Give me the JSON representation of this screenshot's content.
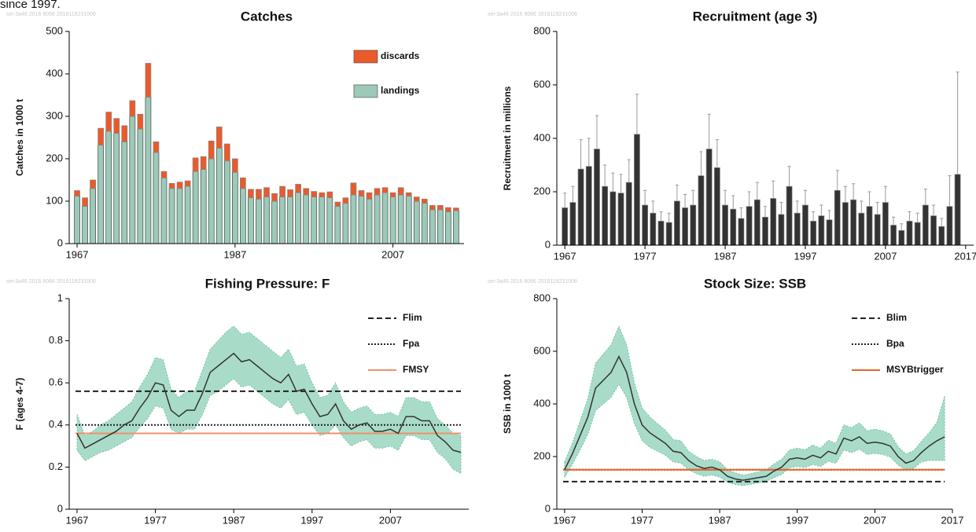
{
  "page_text": "since 1997.",
  "chart_data": [
    {
      "type": "bar",
      "title": "Catches",
      "y_label": "Catches in 1000 t",
      "watermark": "sei-3a46  2016  8066  2016119231006",
      "x": [
        1967,
        1968,
        1969,
        1970,
        1971,
        1972,
        1973,
        1974,
        1975,
        1976,
        1977,
        1978,
        1979,
        1980,
        1981,
        1982,
        1983,
        1984,
        1985,
        1986,
        1987,
        1988,
        1989,
        1990,
        1991,
        1992,
        1993,
        1994,
        1995,
        1996,
        1997,
        1998,
        1999,
        2000,
        2001,
        2002,
        2003,
        2004,
        2005,
        2006,
        2007,
        2008,
        2009,
        2010,
        2011,
        2012,
        2013,
        2014,
        2015
      ],
      "series": [
        {
          "name": "landings",
          "color": "#9dc9b8",
          "values": [
            112,
            88,
            130,
            232,
            265,
            260,
            240,
            300,
            270,
            345,
            215,
            155,
            130,
            130,
            135,
            170,
            175,
            200,
            225,
            195,
            168,
            130,
            108,
            105,
            110,
            100,
            110,
            110,
            120,
            115,
            110,
            110,
            108,
            88,
            95,
            115,
            112,
            105,
            115,
            120,
            110,
            115,
            112,
            100,
            95,
            80,
            80,
            75,
            78
          ]
        },
        {
          "name": "discards",
          "color": "#ea5a2a",
          "values": [
            13,
            20,
            20,
            40,
            45,
            35,
            38,
            37,
            35,
            80,
            25,
            15,
            12,
            15,
            13,
            32,
            30,
            42,
            50,
            40,
            32,
            25,
            20,
            23,
            22,
            18,
            25,
            17,
            20,
            15,
            13,
            10,
            14,
            10,
            13,
            28,
            13,
            15,
            15,
            12,
            10,
            17,
            8,
            10,
            10,
            10,
            10,
            10,
            6
          ]
        }
      ],
      "xlim": [
        1966,
        2016
      ],
      "xticks": [
        1967,
        1987,
        2007
      ],
      "ylim": [
        0,
        500
      ],
      "yticks": [
        0,
        100,
        200,
        300,
        400,
        500
      ],
      "legend": "upper right"
    },
    {
      "type": "bar",
      "title": "Recruitment (age 3)",
      "y_label": "Recruitment in millions",
      "watermark": "sei-3a46  2016  8066  2016119231006",
      "x": [
        1967,
        1968,
        1969,
        1970,
        1971,
        1972,
        1973,
        1974,
        1975,
        1976,
        1977,
        1978,
        1979,
        1980,
        1981,
        1982,
        1983,
        1984,
        1985,
        1986,
        1987,
        1988,
        1989,
        1990,
        1991,
        1992,
        1993,
        1994,
        1995,
        1996,
        1997,
        1998,
        1999,
        2000,
        2001,
        2002,
        2003,
        2004,
        2005,
        2006,
        2007,
        2008,
        2009,
        2010,
        2011,
        2012,
        2013,
        2014,
        2015,
        2016
      ],
      "series": [
        {
          "color": "#333333",
          "values": [
            140,
            160,
            285,
            295,
            360,
            220,
            200,
            195,
            235,
            415,
            150,
            120,
            90,
            85,
            165,
            140,
            150,
            260,
            360,
            290,
            150,
            135,
            100,
            145,
            170,
            105,
            175,
            115,
            220,
            120,
            150,
            90,
            110,
            95,
            205,
            160,
            170,
            120,
            145,
            115,
            160,
            75,
            55,
            90,
            85,
            150,
            110,
            70,
            145,
            265
          ],
          "upper": [
            195,
            220,
            395,
            400,
            485,
            300,
            270,
            265,
            320,
            565,
            205,
            165,
            125,
            120,
            225,
            190,
            205,
            350,
            490,
            395,
            205,
            185,
            140,
            200,
            235,
            145,
            240,
            160,
            295,
            165,
            205,
            125,
            150,
            130,
            280,
            220,
            230,
            165,
            200,
            160,
            220,
            105,
            80,
            125,
            120,
            210,
            150,
            100,
            260,
            648
          ]
        }
      ],
      "xlim": [
        1966,
        2018
      ],
      "xticks": [
        1967,
        1977,
        1987,
        1997,
        2007,
        2017
      ],
      "ylim": [
        0,
        800
      ],
      "yticks": [
        0,
        200,
        400,
        600,
        800
      ]
    },
    {
      "type": "line",
      "title": "Fishing Pressure: F",
      "y_label": "F (ages 4-7)",
      "watermark": "sei-3a46  2016  8066  2016119231006",
      "x": [
        1967,
        1968,
        1969,
        1970,
        1971,
        1972,
        1973,
        1974,
        1975,
        1976,
        1977,
        1978,
        1979,
        1980,
        1981,
        1982,
        1983,
        1984,
        1985,
        1986,
        1987,
        1988,
        1989,
        1990,
        1991,
        1992,
        1993,
        1994,
        1995,
        1996,
        1997,
        1998,
        1999,
        2000,
        2001,
        2002,
        2003,
        2004,
        2005,
        2006,
        2007,
        2008,
        2009,
        2010,
        2011,
        2012,
        2013,
        2014,
        2015,
        2016
      ],
      "values": [
        0.36,
        0.29,
        0.31,
        0.33,
        0.35,
        0.37,
        0.4,
        0.42,
        0.48,
        0.53,
        0.6,
        0.59,
        0.47,
        0.44,
        0.47,
        0.47,
        0.55,
        0.65,
        0.68,
        0.71,
        0.74,
        0.7,
        0.71,
        0.68,
        0.65,
        0.62,
        0.6,
        0.64,
        0.56,
        0.57,
        0.5,
        0.44,
        0.45,
        0.5,
        0.42,
        0.38,
        0.4,
        0.41,
        0.37,
        0.37,
        0.38,
        0.36,
        0.44,
        0.44,
        0.42,
        0.42,
        0.35,
        0.32,
        0.28,
        0.27
      ],
      "color": "#333333",
      "band": {
        "color": "#a8dcc8",
        "high": [
          0.45,
          0.35,
          0.37,
          0.4,
          0.42,
          0.45,
          0.48,
          0.51,
          0.58,
          0.64,
          0.72,
          0.71,
          0.57,
          0.53,
          0.56,
          0.56,
          0.66,
          0.76,
          0.8,
          0.84,
          0.87,
          0.83,
          0.84,
          0.81,
          0.78,
          0.75,
          0.72,
          0.76,
          0.68,
          0.69,
          0.6,
          0.53,
          0.54,
          0.6,
          0.51,
          0.46,
          0.48,
          0.49,
          0.45,
          0.45,
          0.46,
          0.44,
          0.53,
          0.53,
          0.51,
          0.51,
          0.43,
          0.4,
          0.36,
          0.35
        ],
        "low": [
          0.28,
          0.23,
          0.25,
          0.27,
          0.28,
          0.3,
          0.32,
          0.34,
          0.39,
          0.43,
          0.49,
          0.48,
          0.38,
          0.36,
          0.38,
          0.38,
          0.45,
          0.54,
          0.56,
          0.59,
          0.62,
          0.58,
          0.59,
          0.56,
          0.53,
          0.5,
          0.48,
          0.52,
          0.45,
          0.46,
          0.4,
          0.35,
          0.36,
          0.4,
          0.34,
          0.3,
          0.32,
          0.33,
          0.29,
          0.29,
          0.3,
          0.28,
          0.35,
          0.35,
          0.33,
          0.33,
          0.27,
          0.24,
          0.19,
          0.17
        ]
      },
      "reference_lines": [
        {
          "name": "Flim",
          "value": 0.56,
          "color": "#222222",
          "style": "dashed"
        },
        {
          "name": "Fpa",
          "value": 0.4,
          "color": "#222222",
          "style": "dotted"
        },
        {
          "name": "FMSY",
          "value": 0.36,
          "color": "#f0906a",
          "style": "solid"
        }
      ],
      "xlim": [
        1966,
        2017
      ],
      "xticks": [
        1967,
        1977,
        1987,
        1997,
        2007
      ],
      "ylim": [
        0,
        1
      ],
      "yticks": [
        0,
        0.2,
        0.4,
        0.6,
        0.8,
        1
      ],
      "legend": "upper right"
    },
    {
      "type": "line",
      "title": "Stock Size: SSB",
      "y_label": "SSB in 1000 t",
      "watermark": "sei-3a46  2016  8066  2016119231006",
      "x": [
        1967,
        1968,
        1969,
        1970,
        1971,
        1972,
        1973,
        1974,
        1975,
        1976,
        1977,
        1978,
        1979,
        1980,
        1981,
        1982,
        1983,
        1984,
        1985,
        1986,
        1987,
        1988,
        1989,
        1990,
        1991,
        1992,
        1993,
        1994,
        1995,
        1996,
        1997,
        1998,
        1999,
        2000,
        2001,
        2002,
        2003,
        2004,
        2005,
        2006,
        2007,
        2008,
        2009,
        2010,
        2011,
        2012,
        2013,
        2014,
        2015,
        2016
      ],
      "values": [
        150,
        210,
        280,
        350,
        460,
        490,
        520,
        580,
        520,
        400,
        320,
        290,
        270,
        250,
        220,
        215,
        185,
        165,
        155,
        160,
        150,
        125,
        115,
        110,
        115,
        120,
        125,
        145,
        160,
        190,
        195,
        190,
        205,
        195,
        220,
        210,
        270,
        260,
        275,
        250,
        255,
        250,
        240,
        200,
        175,
        185,
        215,
        240,
        260,
        275
      ],
      "color": "#333333",
      "band": {
        "color": "#a8dcc8",
        "high": [
          180,
          250,
          335,
          420,
          555,
          590,
          625,
          695,
          625,
          480,
          385,
          350,
          325,
          300,
          265,
          260,
          220,
          200,
          185,
          190,
          180,
          150,
          138,
          130,
          135,
          142,
          150,
          172,
          190,
          225,
          232,
          226,
          244,
          232,
          262,
          250,
          320,
          310,
          328,
          298,
          304,
          298,
          286,
          238,
          210,
          222,
          258,
          290,
          330,
          430
        ],
        "low": [
          120,
          170,
          225,
          285,
          375,
          400,
          425,
          475,
          425,
          325,
          260,
          235,
          220,
          205,
          180,
          175,
          150,
          135,
          125,
          130,
          122,
          102,
          94,
          90,
          95,
          100,
          105,
          120,
          132,
          158,
          162,
          158,
          170,
          162,
          182,
          175,
          225,
          215,
          228,
          208,
          212,
          208,
          198,
          168,
          148,
          155,
          180,
          185,
          185,
          185
        ]
      },
      "reference_lines": [
        {
          "name": "Blim",
          "value": 105,
          "color": "#222222",
          "style": "dashed"
        },
        {
          "name": "Bpa",
          "value": 150,
          "color": "#222222",
          "style": "dotted"
        },
        {
          "name": "MSYBtrigger",
          "value": 150,
          "color": "#e8642a",
          "style": "solid"
        }
      ],
      "xlim": [
        1966,
        2017
      ],
      "xticks": [
        1967,
        1977,
        1987,
        1997,
        2007,
        2017
      ],
      "ylim": [
        0,
        800
      ],
      "yticks": [
        0,
        200,
        400,
        600,
        800
      ],
      "legend": "upper right"
    }
  ]
}
